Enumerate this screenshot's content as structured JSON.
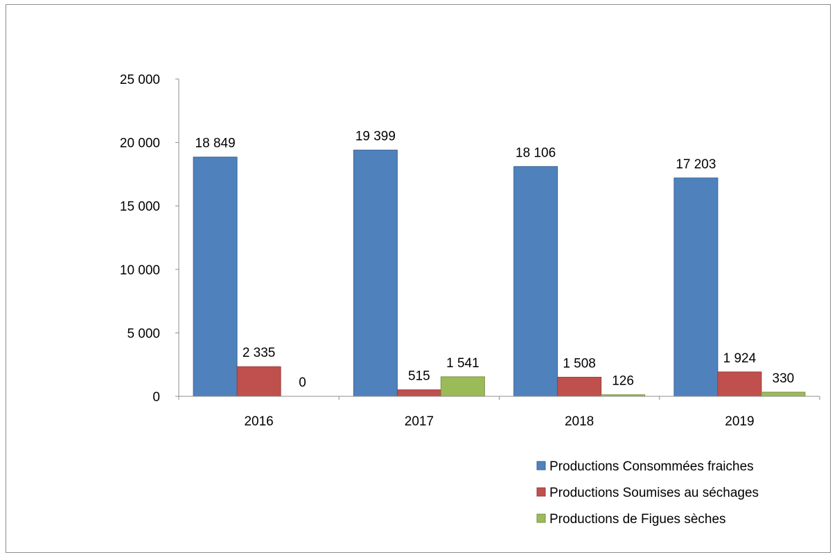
{
  "chart_data": {
    "type": "bar",
    "categories": [
      "2016",
      "2017",
      "2018",
      "2019"
    ],
    "series": [
      {
        "name": "Productions Consommées fraiches",
        "values": [
          18849,
          19399,
          18106,
          17203
        ],
        "labels": [
          "18 849",
          "19 399",
          "18 106",
          "17 203"
        ],
        "color": "#4f81bd"
      },
      {
        "name": "Productions Soumises au séchages",
        "values": [
          2335,
          515,
          1508,
          1924
        ],
        "labels": [
          "2 335",
          "515",
          "1 508",
          "1 924"
        ],
        "color": "#c0504d"
      },
      {
        "name": "Productions de Figues sèches",
        "values": [
          0,
          1541,
          126,
          330
        ],
        "labels": [
          "0",
          "1 541",
          "126",
          "330"
        ],
        "color": "#9bbb59"
      }
    ],
    "ylim": [
      0,
      25000
    ],
    "yticks": [
      0,
      5000,
      10000,
      15000,
      20000,
      25000
    ],
    "ytick_labels": [
      "0",
      "5 000",
      "10 000",
      "15 000",
      "20 000",
      "25 000"
    ],
    "grid": false,
    "legend_position": "bottom-right",
    "title": "",
    "xlabel": "",
    "ylabel": ""
  }
}
